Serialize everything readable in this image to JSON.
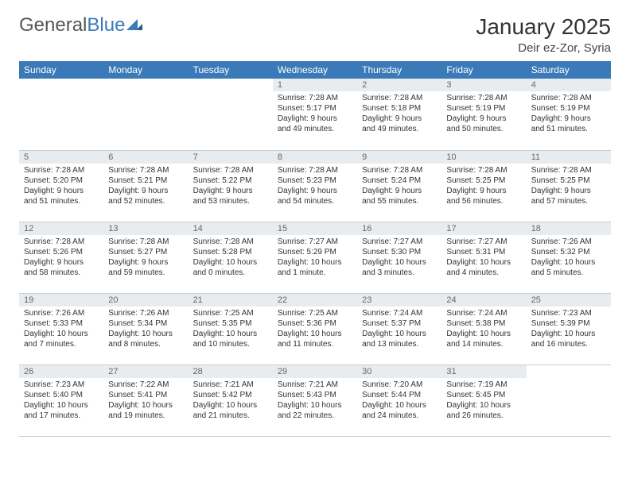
{
  "logo": {
    "part1": "General",
    "part2": "Blue"
  },
  "title": "January 2025",
  "location": "Deir ez-Zor, Syria",
  "weekdays": [
    "Sunday",
    "Monday",
    "Tuesday",
    "Wednesday",
    "Thursday",
    "Friday",
    "Saturday"
  ],
  "colors": {
    "headerBar": "#3b7ab8",
    "dayHeaderBg": "#e8ecef",
    "logoBlue": "#3b7ab8",
    "logoDark": "#2a5a8a",
    "border": "#cccccc"
  },
  "startWeekday": 3,
  "daysInMonth": 31,
  "days": {
    "1": {
      "sunrise": "7:28 AM",
      "sunset": "5:17 PM",
      "daylight": "9 hours and 49 minutes."
    },
    "2": {
      "sunrise": "7:28 AM",
      "sunset": "5:18 PM",
      "daylight": "9 hours and 49 minutes."
    },
    "3": {
      "sunrise": "7:28 AM",
      "sunset": "5:19 PM",
      "daylight": "9 hours and 50 minutes."
    },
    "4": {
      "sunrise": "7:28 AM",
      "sunset": "5:19 PM",
      "daylight": "9 hours and 51 minutes."
    },
    "5": {
      "sunrise": "7:28 AM",
      "sunset": "5:20 PM",
      "daylight": "9 hours and 51 minutes."
    },
    "6": {
      "sunrise": "7:28 AM",
      "sunset": "5:21 PM",
      "daylight": "9 hours and 52 minutes."
    },
    "7": {
      "sunrise": "7:28 AM",
      "sunset": "5:22 PM",
      "daylight": "9 hours and 53 minutes."
    },
    "8": {
      "sunrise": "7:28 AM",
      "sunset": "5:23 PM",
      "daylight": "9 hours and 54 minutes."
    },
    "9": {
      "sunrise": "7:28 AM",
      "sunset": "5:24 PM",
      "daylight": "9 hours and 55 minutes."
    },
    "10": {
      "sunrise": "7:28 AM",
      "sunset": "5:25 PM",
      "daylight": "9 hours and 56 minutes."
    },
    "11": {
      "sunrise": "7:28 AM",
      "sunset": "5:25 PM",
      "daylight": "9 hours and 57 minutes."
    },
    "12": {
      "sunrise": "7:28 AM",
      "sunset": "5:26 PM",
      "daylight": "9 hours and 58 minutes."
    },
    "13": {
      "sunrise": "7:28 AM",
      "sunset": "5:27 PM",
      "daylight": "9 hours and 59 minutes."
    },
    "14": {
      "sunrise": "7:28 AM",
      "sunset": "5:28 PM",
      "daylight": "10 hours and 0 minutes."
    },
    "15": {
      "sunrise": "7:27 AM",
      "sunset": "5:29 PM",
      "daylight": "10 hours and 1 minute."
    },
    "16": {
      "sunrise": "7:27 AM",
      "sunset": "5:30 PM",
      "daylight": "10 hours and 3 minutes."
    },
    "17": {
      "sunrise": "7:27 AM",
      "sunset": "5:31 PM",
      "daylight": "10 hours and 4 minutes."
    },
    "18": {
      "sunrise": "7:26 AM",
      "sunset": "5:32 PM",
      "daylight": "10 hours and 5 minutes."
    },
    "19": {
      "sunrise": "7:26 AM",
      "sunset": "5:33 PM",
      "daylight": "10 hours and 7 minutes."
    },
    "20": {
      "sunrise": "7:26 AM",
      "sunset": "5:34 PM",
      "daylight": "10 hours and 8 minutes."
    },
    "21": {
      "sunrise": "7:25 AM",
      "sunset": "5:35 PM",
      "daylight": "10 hours and 10 minutes."
    },
    "22": {
      "sunrise": "7:25 AM",
      "sunset": "5:36 PM",
      "daylight": "10 hours and 11 minutes."
    },
    "23": {
      "sunrise": "7:24 AM",
      "sunset": "5:37 PM",
      "daylight": "10 hours and 13 minutes."
    },
    "24": {
      "sunrise": "7:24 AM",
      "sunset": "5:38 PM",
      "daylight": "10 hours and 14 minutes."
    },
    "25": {
      "sunrise": "7:23 AM",
      "sunset": "5:39 PM",
      "daylight": "10 hours and 16 minutes."
    },
    "26": {
      "sunrise": "7:23 AM",
      "sunset": "5:40 PM",
      "daylight": "10 hours and 17 minutes."
    },
    "27": {
      "sunrise": "7:22 AM",
      "sunset": "5:41 PM",
      "daylight": "10 hours and 19 minutes."
    },
    "28": {
      "sunrise": "7:21 AM",
      "sunset": "5:42 PM",
      "daylight": "10 hours and 21 minutes."
    },
    "29": {
      "sunrise": "7:21 AM",
      "sunset": "5:43 PM",
      "daylight": "10 hours and 22 minutes."
    },
    "30": {
      "sunrise": "7:20 AM",
      "sunset": "5:44 PM",
      "daylight": "10 hours and 24 minutes."
    },
    "31": {
      "sunrise": "7:19 AM",
      "sunset": "5:45 PM",
      "daylight": "10 hours and 26 minutes."
    }
  },
  "labels": {
    "sunrise": "Sunrise: ",
    "sunset": "Sunset: ",
    "daylight": "Daylight: "
  }
}
